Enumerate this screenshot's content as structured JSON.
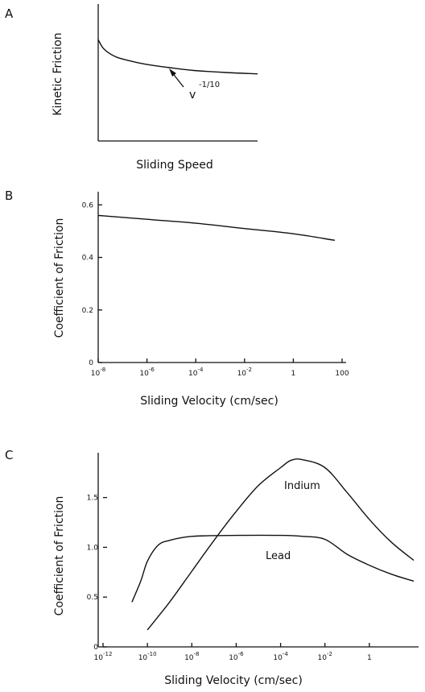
{
  "chart_data": [
    {
      "type": "line",
      "panel_label": "A",
      "xlabel": "Sliding Speed",
      "ylabel": "Kinetic Friction",
      "annotation": {
        "text": "v",
        "exponent": "-1/10"
      },
      "series": [
        {
          "x": [
            0,
            0.03,
            0.07,
            0.12,
            0.2,
            0.3,
            0.45,
            0.6,
            0.8,
            1.0
          ],
          "values": [
            0.74,
            0.68,
            0.64,
            0.61,
            0.585,
            0.56,
            0.535,
            0.515,
            0.5,
            0.49
          ]
        }
      ]
    },
    {
      "type": "line",
      "panel_label": "B",
      "xlabel": "Sliding Velocity (cm/sec)",
      "ylabel": "Coefficient of Friction",
      "xscale": "log",
      "xlim": [
        1e-08,
        100
      ],
      "ylim": [
        0,
        0.65
      ],
      "xticks": [
        {
          "value": 1e-08,
          "base": "10",
          "exp": "-8"
        },
        {
          "value": 1e-06,
          "base": "10",
          "exp": "-6"
        },
        {
          "value": 0.0001,
          "base": "10",
          "exp": "-4"
        },
        {
          "value": 0.01,
          "base": "10",
          "exp": "-2"
        },
        {
          "value": 1,
          "base": "1",
          "exp": ""
        },
        {
          "value": 100,
          "base": "100",
          "exp": ""
        }
      ],
      "yticks": [
        {
          "value": 0,
          "label": "0"
        },
        {
          "value": 0.2,
          "label": "0.2"
        },
        {
          "value": 0.4,
          "label": "0.4"
        },
        {
          "value": 0.6,
          "label": "0.6"
        }
      ],
      "series": [
        {
          "x": [
            1e-08,
            1e-06,
            0.0001,
            0.01,
            1,
            50
          ],
          "values": [
            0.56,
            0.545,
            0.53,
            0.51,
            0.49,
            0.465
          ]
        }
      ]
    },
    {
      "type": "line",
      "panel_label": "C",
      "xlabel": "Sliding Velocity (cm/sec)",
      "ylabel": "Coefficient of Friction",
      "xscale": "log",
      "xlim": [
        1e-12,
        100
      ],
      "ylim": [
        0,
        1.95
      ],
      "xticks": [
        {
          "value": 1e-12,
          "base": "10",
          "exp": "-12"
        },
        {
          "value": 1e-10,
          "base": "10",
          "exp": "-10"
        },
        {
          "value": 1e-08,
          "base": "10",
          "exp": "-8"
        },
        {
          "value": 1e-06,
          "base": "10",
          "exp": "-6"
        },
        {
          "value": 0.0001,
          "base": "10",
          "exp": "-4"
        },
        {
          "value": 0.01,
          "base": "10",
          "exp": "-2"
        },
        {
          "value": 1,
          "base": "1",
          "exp": ""
        }
      ],
      "yticks": [
        {
          "value": 0,
          "label": "0"
        },
        {
          "value": 0.5,
          "label": "0.5"
        },
        {
          "value": 1.0,
          "label": "1.0"
        },
        {
          "value": 1.5,
          "label": "1.5"
        }
      ],
      "series": [
        {
          "name": "Indium",
          "x": [
            1e-10,
            1e-09,
            1e-08,
            1e-07,
            1e-06,
            1e-05,
            0.0001,
            0.0003,
            0.001,
            0.01,
            0.1,
            1,
            10,
            100
          ],
          "values": [
            0.17,
            0.45,
            0.76,
            1.07,
            1.36,
            1.62,
            1.8,
            1.875,
            1.88,
            1.8,
            1.55,
            1.28,
            1.05,
            0.87
          ]
        },
        {
          "name": "Lead",
          "x": [
            2e-11,
            5e-11,
            1e-10,
            3e-10,
            1e-09,
            1e-08,
            1e-06,
            0.0001,
            0.001,
            0.01,
            0.1,
            1,
            10,
            100
          ],
          "values": [
            0.45,
            0.66,
            0.86,
            1.02,
            1.07,
            1.11,
            1.12,
            1.12,
            1.11,
            1.08,
            0.93,
            0.82,
            0.73,
            0.66
          ]
        }
      ],
      "labels": [
        {
          "text": "Indium",
          "series": "Indium"
        },
        {
          "text": "Lead",
          "series": "Lead"
        }
      ]
    }
  ]
}
